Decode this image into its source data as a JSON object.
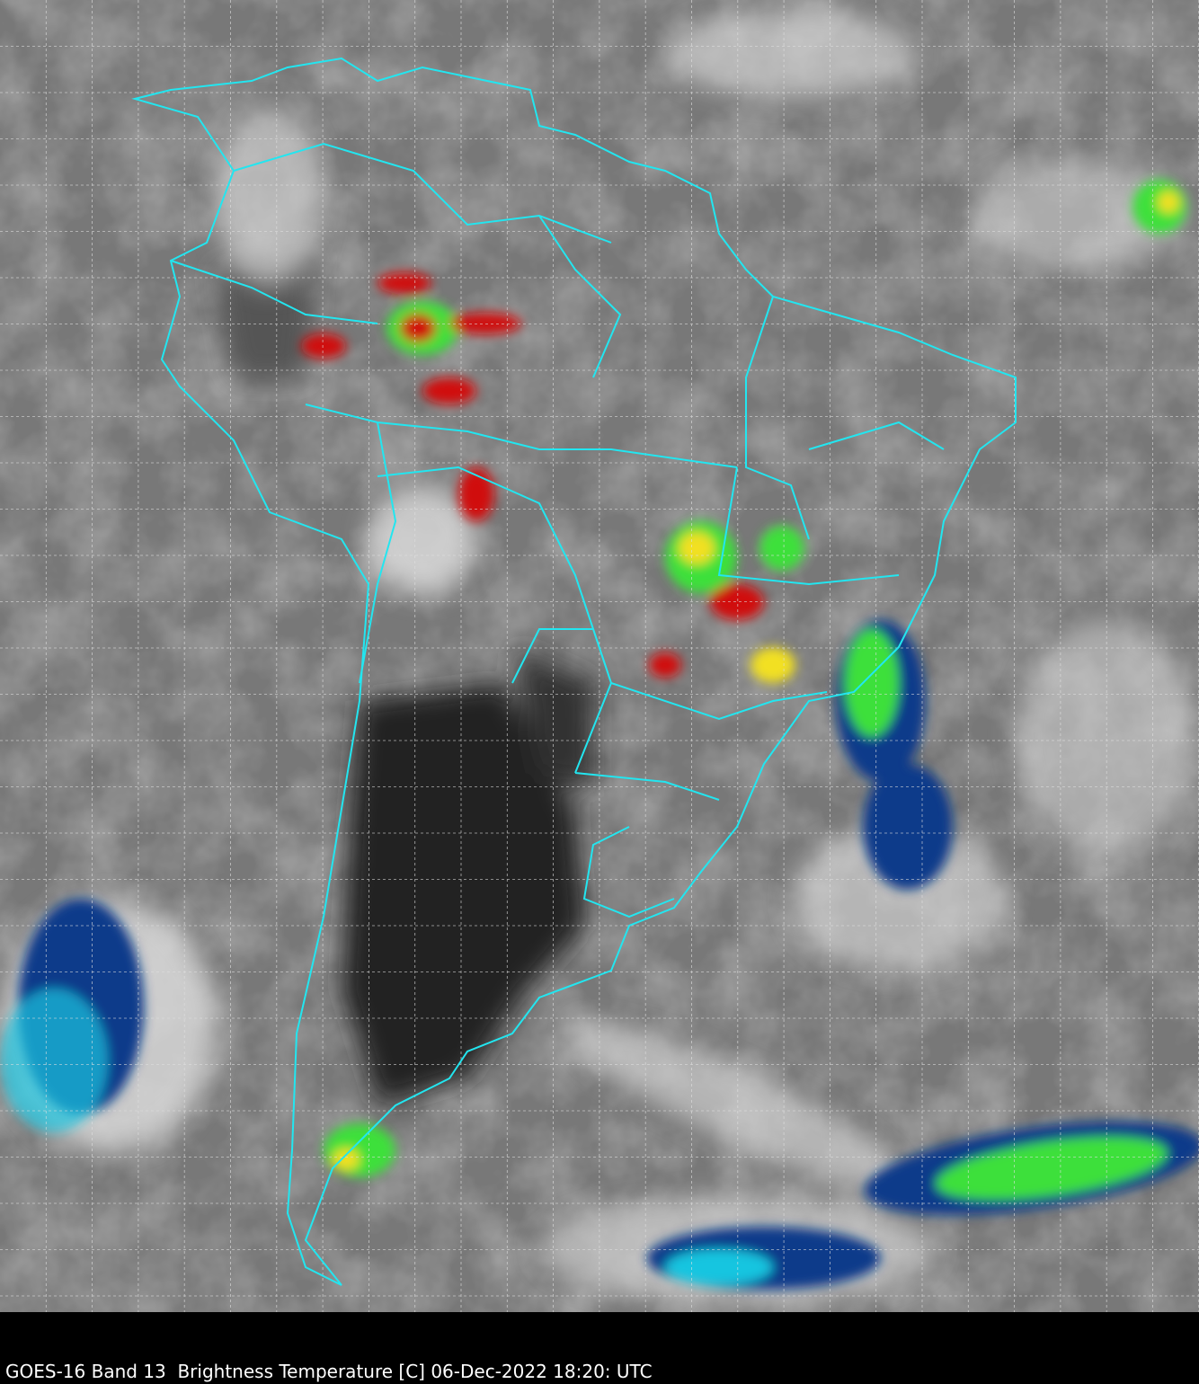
{
  "caption": "GOES-16 Band 13  Brightness Temperature [C] 06-Dec-2022 18:20: UTC",
  "colors": {
    "background_gray": "#787878",
    "land_dark": "#2a2a2a",
    "border_lines": "#22e6f0",
    "grid_lines": "#e0e0e0",
    "cold_cloud_blue": "#0a3a8a",
    "cold_cloud_cyan": "#17c5e0",
    "cold_cloud_green": "#3ee03a",
    "cold_cloud_yellow": "#f2e020",
    "cold_cloud_red": "#d01010",
    "caption_bar": "#000000"
  }
}
